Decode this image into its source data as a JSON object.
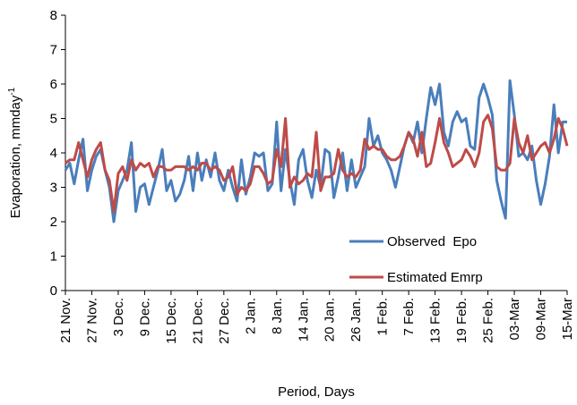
{
  "chart_data": {
    "type": "line",
    "x_label": "Period, Days",
    "y_label": {
      "text": "Evaporation, mmday",
      "superscript": "-1"
    },
    "categories": [
      "21 Nov.",
      null,
      null,
      null,
      null,
      null,
      "27 Nov.",
      null,
      null,
      null,
      null,
      null,
      "3 Dec.",
      null,
      null,
      null,
      null,
      null,
      "9 Dec.",
      null,
      null,
      null,
      null,
      null,
      "15 Dec.",
      null,
      null,
      null,
      null,
      null,
      "21 Dec.",
      null,
      null,
      null,
      null,
      null,
      "27 Dec.",
      null,
      null,
      null,
      null,
      null,
      "2 Jan.",
      null,
      null,
      null,
      null,
      null,
      "8 Jan.",
      null,
      null,
      null,
      null,
      null,
      "14 Jan.",
      null,
      null,
      null,
      null,
      null,
      "20 Jan.",
      null,
      null,
      null,
      null,
      null,
      "26 Jan.",
      null,
      null,
      null,
      null,
      null,
      "1 Feb.",
      null,
      null,
      null,
      null,
      null,
      "7 Feb.",
      null,
      null,
      null,
      null,
      null,
      "13 Feb.",
      null,
      null,
      null,
      null,
      null,
      "19 Feb.",
      null,
      null,
      null,
      null,
      null,
      "25 Feb.",
      null,
      null,
      null,
      null,
      null,
      "03-Mar",
      null,
      null,
      null,
      null,
      null,
      "09-Mar",
      null,
      null,
      null,
      null,
      null,
      "15-Mar"
    ],
    "series": [
      {
        "name": "Observed  Epo",
        "color": "#4a7ebb",
        "values": [
          3.5,
          3.7,
          3.1,
          3.8,
          4.4,
          2.9,
          3.5,
          3.9,
          4.1,
          3.5,
          3.0,
          2.0,
          2.9,
          3.2,
          3.5,
          4.3,
          2.3,
          3.0,
          3.1,
          2.5,
          3.0,
          3.5,
          4.1,
          2.9,
          3.2,
          2.6,
          2.8,
          3.2,
          3.9,
          2.9,
          4.0,
          3.2,
          3.8,
          3.3,
          4.0,
          3.2,
          2.9,
          3.5,
          3.0,
          2.6,
          3.8,
          2.8,
          3.3,
          4.0,
          3.9,
          4.0,
          2.9,
          3.1,
          4.9,
          2.9,
          4.1,
          3.2,
          2.5,
          3.8,
          4.1,
          3.2,
          2.7,
          3.5,
          3.0,
          4.1,
          4.0,
          2.7,
          3.3,
          4.0,
          2.9,
          3.8,
          3.0,
          3.3,
          3.6,
          5.0,
          4.2,
          4.5,
          4.0,
          3.8,
          3.5,
          3.0,
          3.6,
          4.2,
          4.6,
          4.3,
          4.9,
          4.0,
          5.0,
          5.9,
          5.4,
          6.0,
          4.6,
          4.2,
          4.9,
          5.2,
          4.9,
          5.0,
          4.2,
          4.1,
          5.6,
          6.0,
          5.6,
          5.1,
          3.2,
          2.6,
          2.1,
          6.1,
          5.1,
          3.9,
          4.0,
          3.8,
          4.2,
          3.2,
          2.5,
          3.1,
          3.9,
          5.4,
          4.0,
          4.9,
          4.9
        ]
      },
      {
        "name": "Estimated Emrp",
        "color": "#be4b48",
        "values": [
          3.7,
          3.8,
          3.8,
          4.3,
          3.8,
          3.3,
          3.8,
          4.1,
          4.3,
          3.5,
          3.2,
          2.3,
          3.4,
          3.6,
          3.2,
          3.8,
          3.5,
          3.7,
          3.6,
          3.7,
          3.3,
          3.6,
          3.6,
          3.5,
          3.5,
          3.6,
          3.6,
          3.6,
          3.5,
          3.6,
          3.5,
          3.7,
          3.7,
          3.5,
          3.6,
          3.5,
          3.2,
          3.3,
          3.6,
          2.8,
          3.0,
          2.9,
          3.1,
          3.6,
          3.6,
          3.4,
          3.1,
          3.2,
          4.1,
          3.6,
          5.0,
          3.0,
          3.3,
          3.1,
          3.2,
          3.4,
          3.3,
          4.6,
          2.9,
          3.3,
          3.3,
          3.4,
          4.1,
          3.5,
          3.3,
          3.4,
          3.3,
          3.5,
          4.4,
          4.1,
          4.2,
          4.1,
          4.1,
          3.9,
          3.8,
          3.8,
          3.9,
          4.2,
          4.6,
          4.4,
          3.9,
          4.6,
          3.6,
          3.7,
          4.3,
          5.0,
          4.3,
          4.0,
          3.6,
          3.7,
          3.8,
          4.1,
          3.9,
          3.6,
          4.0,
          4.9,
          5.1,
          4.7,
          3.6,
          3.5,
          3.5,
          3.7,
          5.0,
          4.3,
          4.0,
          4.5,
          3.8,
          4.0,
          4.2,
          4.3,
          4.0,
          4.4,
          5.0,
          4.7,
          4.2
        ]
      }
    ],
    "ylim": [
      0,
      8
    ],
    "yticks": [
      0,
      1,
      2,
      3,
      4,
      5,
      6,
      7,
      8
    ],
    "legend": "lower right"
  }
}
